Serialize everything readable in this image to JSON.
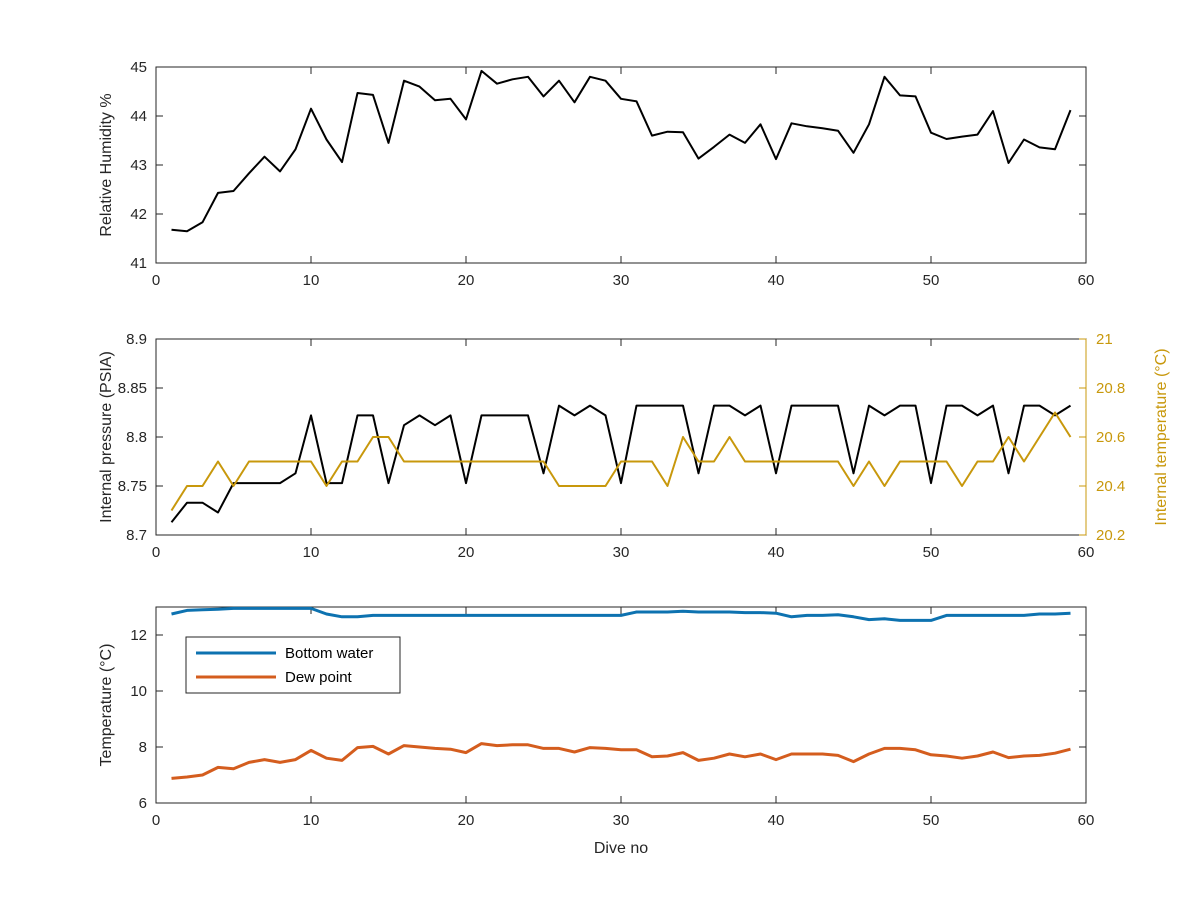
{
  "figure": {
    "xlabel": "Dive no"
  },
  "chart_data": [
    {
      "type": "line",
      "ylabel": "Relative Humidity %",
      "xlim": [
        0,
        60
      ],
      "ylim": [
        41,
        45
      ],
      "xticks": [
        "0",
        "10",
        "20",
        "30",
        "40",
        "50",
        "60"
      ],
      "yticks": [
        "41",
        "42",
        "43",
        "44",
        "45"
      ],
      "series": [
        {
          "color": "#000000",
          "x": [
            1,
            2,
            3,
            4,
            5,
            6,
            7,
            8,
            9,
            10,
            11,
            12,
            13,
            14,
            15,
            16,
            17,
            18,
            19,
            20,
            21,
            22,
            23,
            24,
            25,
            26,
            27,
            28,
            29,
            30,
            31,
            32,
            33,
            34,
            35,
            36,
            37,
            38,
            39,
            40,
            41,
            42,
            43,
            44,
            45,
            46,
            47,
            48,
            49,
            50,
            51,
            52,
            53,
            54,
            55,
            56,
            57,
            58,
            59
          ],
          "y": [
            41.68,
            41.65,
            41.83,
            42.43,
            42.47,
            42.83,
            43.17,
            42.87,
            43.32,
            44.15,
            43.52,
            43.06,
            44.47,
            44.43,
            43.45,
            44.72,
            44.6,
            44.32,
            44.35,
            43.93,
            44.92,
            44.66,
            44.75,
            44.8,
            44.4,
            44.72,
            44.28,
            44.8,
            44.72,
            44.35,
            44.3,
            43.6,
            43.68,
            43.67,
            43.13,
            43.37,
            43.62,
            43.45,
            43.83,
            43.12,
            43.85,
            43.79,
            43.75,
            43.7,
            43.25,
            43.83,
            44.8,
            44.42,
            44.4,
            43.66,
            43.53,
            43.58,
            43.62,
            44.1,
            43.04,
            43.52,
            43.36,
            43.32,
            44.12
          ]
        }
      ]
    },
    {
      "type": "line",
      "ylabel": "Internal pressure (PSIA)",
      "ylabel_right": "Internal temperature (°C)",
      "xlim": [
        0,
        60
      ],
      "ylim": [
        8.7,
        8.9
      ],
      "ylim_right": [
        20.2,
        21
      ],
      "xticks": [
        "0",
        "10",
        "20",
        "30",
        "40",
        "50",
        "60"
      ],
      "yticks": [
        "8.7",
        "8.75",
        "8.8",
        "8.85",
        "8.9"
      ],
      "yticks_right": [
        "20.2",
        "20.4",
        "20.6",
        "20.8",
        "21"
      ],
      "series": [
        {
          "axis": "left",
          "color": "#000000",
          "x": [
            1,
            2,
            3,
            4,
            5,
            6,
            7,
            8,
            9,
            10,
            11,
            12,
            13,
            14,
            15,
            16,
            17,
            18,
            19,
            20,
            21,
            22,
            23,
            24,
            25,
            26,
            27,
            28,
            29,
            30,
            31,
            32,
            33,
            34,
            35,
            36,
            37,
            38,
            39,
            40,
            41,
            42,
            43,
            44,
            45,
            46,
            47,
            48,
            49,
            50,
            51,
            52,
            53,
            54,
            55,
            56,
            57,
            58,
            59
          ],
          "y": [
            8.713,
            8.733,
            8.733,
            8.723,
            8.753,
            8.753,
            8.753,
            8.753,
            8.763,
            8.822,
            8.753,
            8.753,
            8.822,
            8.822,
            8.753,
            8.812,
            8.822,
            8.812,
            8.822,
            8.753,
            8.822,
            8.822,
            8.822,
            8.822,
            8.763,
            8.832,
            8.822,
            8.832,
            8.822,
            8.753,
            8.832,
            8.832,
            8.832,
            8.832,
            8.763,
            8.832,
            8.832,
            8.822,
            8.832,
            8.763,
            8.832,
            8.832,
            8.832,
            8.832,
            8.763,
            8.832,
            8.822,
            8.832,
            8.832,
            8.753,
            8.832,
            8.832,
            8.822,
            8.832,
            8.763,
            8.832,
            8.832,
            8.822,
            8.832
          ]
        },
        {
          "axis": "right",
          "color": "#c8980c",
          "x": [
            1,
            2,
            3,
            4,
            5,
            6,
            7,
            8,
            9,
            10,
            11,
            12,
            13,
            14,
            15,
            16,
            17,
            18,
            19,
            20,
            21,
            22,
            23,
            24,
            25,
            26,
            27,
            28,
            29,
            30,
            31,
            32,
            33,
            34,
            35,
            36,
            37,
            38,
            39,
            40,
            41,
            42,
            43,
            44,
            45,
            46,
            47,
            48,
            49,
            50,
            51,
            52,
            53,
            54,
            55,
            56,
            57,
            58,
            59
          ],
          "y": [
            20.3,
            20.4,
            20.4,
            20.5,
            20.4,
            20.5,
            20.5,
            20.5,
            20.5,
            20.5,
            20.4,
            20.5,
            20.5,
            20.6,
            20.6,
            20.5,
            20.5,
            20.5,
            20.5,
            20.5,
            20.5,
            20.5,
            20.5,
            20.5,
            20.5,
            20.4,
            20.4,
            20.4,
            20.4,
            20.5,
            20.5,
            20.5,
            20.4,
            20.6,
            20.5,
            20.5,
            20.6,
            20.5,
            20.5,
            20.5,
            20.5,
            20.5,
            20.5,
            20.5,
            20.4,
            20.5,
            20.4,
            20.5,
            20.5,
            20.5,
            20.5,
            20.4,
            20.5,
            20.5,
            20.6,
            20.5,
            20.6,
            20.7,
            20.6
          ]
        }
      ]
    },
    {
      "type": "line",
      "ylabel": "Temperature (°C)",
      "xlabel": "Dive no",
      "xlim": [
        0,
        60
      ],
      "ylim": [
        6,
        13
      ],
      "xticks": [
        "0",
        "10",
        "20",
        "30",
        "40",
        "50",
        "60"
      ],
      "yticks": [
        "6",
        "8",
        "10",
        "12"
      ],
      "legend": "top-left",
      "series": [
        {
          "name": "Bottom water",
          "color": "#0d72b0",
          "x": [
            1,
            2,
            3,
            4,
            5,
            6,
            7,
            8,
            9,
            10,
            11,
            12,
            13,
            14,
            15,
            16,
            17,
            18,
            19,
            20,
            21,
            22,
            23,
            24,
            25,
            26,
            27,
            28,
            29,
            30,
            31,
            32,
            33,
            34,
            35,
            36,
            37,
            38,
            39,
            40,
            41,
            42,
            43,
            44,
            45,
            46,
            47,
            48,
            49,
            50,
            51,
            52,
            53,
            54,
            55,
            56,
            57,
            58,
            59
          ],
          "y": [
            12.75,
            12.88,
            12.9,
            12.92,
            12.95,
            12.95,
            12.95,
            12.95,
            12.95,
            12.95,
            12.75,
            12.65,
            12.65,
            12.7,
            12.7,
            12.7,
            12.7,
            12.7,
            12.7,
            12.7,
            12.7,
            12.7,
            12.7,
            12.7,
            12.7,
            12.7,
            12.7,
            12.7,
            12.7,
            12.7,
            12.82,
            12.82,
            12.82,
            12.85,
            12.82,
            12.82,
            12.82,
            12.8,
            12.8,
            12.78,
            12.65,
            12.7,
            12.7,
            12.72,
            12.65,
            12.55,
            12.58,
            12.52,
            12.52,
            12.52,
            12.7,
            12.7,
            12.7,
            12.7,
            12.7,
            12.7,
            12.75,
            12.75,
            12.78
          ]
        },
        {
          "name": "Dew point",
          "color": "#d45d1e",
          "x": [
            1,
            2,
            3,
            4,
            5,
            6,
            7,
            8,
            9,
            10,
            11,
            12,
            13,
            14,
            15,
            16,
            17,
            18,
            19,
            20,
            21,
            22,
            23,
            24,
            25,
            26,
            27,
            28,
            29,
            30,
            31,
            32,
            33,
            34,
            35,
            36,
            37,
            38,
            39,
            40,
            41,
            42,
            43,
            44,
            45,
            46,
            47,
            48,
            49,
            50,
            51,
            52,
            53,
            54,
            55,
            56,
            57,
            58,
            59
          ],
          "y": [
            6.88,
            6.93,
            7.0,
            7.27,
            7.22,
            7.45,
            7.55,
            7.45,
            7.55,
            7.88,
            7.6,
            7.52,
            7.98,
            8.02,
            7.75,
            8.05,
            8.0,
            7.95,
            7.92,
            7.8,
            8.12,
            8.05,
            8.08,
            8.08,
            7.95,
            7.95,
            7.82,
            7.98,
            7.95,
            7.9,
            7.9,
            7.65,
            7.68,
            7.8,
            7.52,
            7.6,
            7.75,
            7.65,
            7.75,
            7.55,
            7.75,
            7.75,
            7.75,
            7.7,
            7.48,
            7.75,
            7.95,
            7.95,
            7.9,
            7.72,
            7.68,
            7.6,
            7.68,
            7.82,
            7.62,
            7.68,
            7.7,
            7.78,
            7.92
          ]
        }
      ]
    }
  ]
}
